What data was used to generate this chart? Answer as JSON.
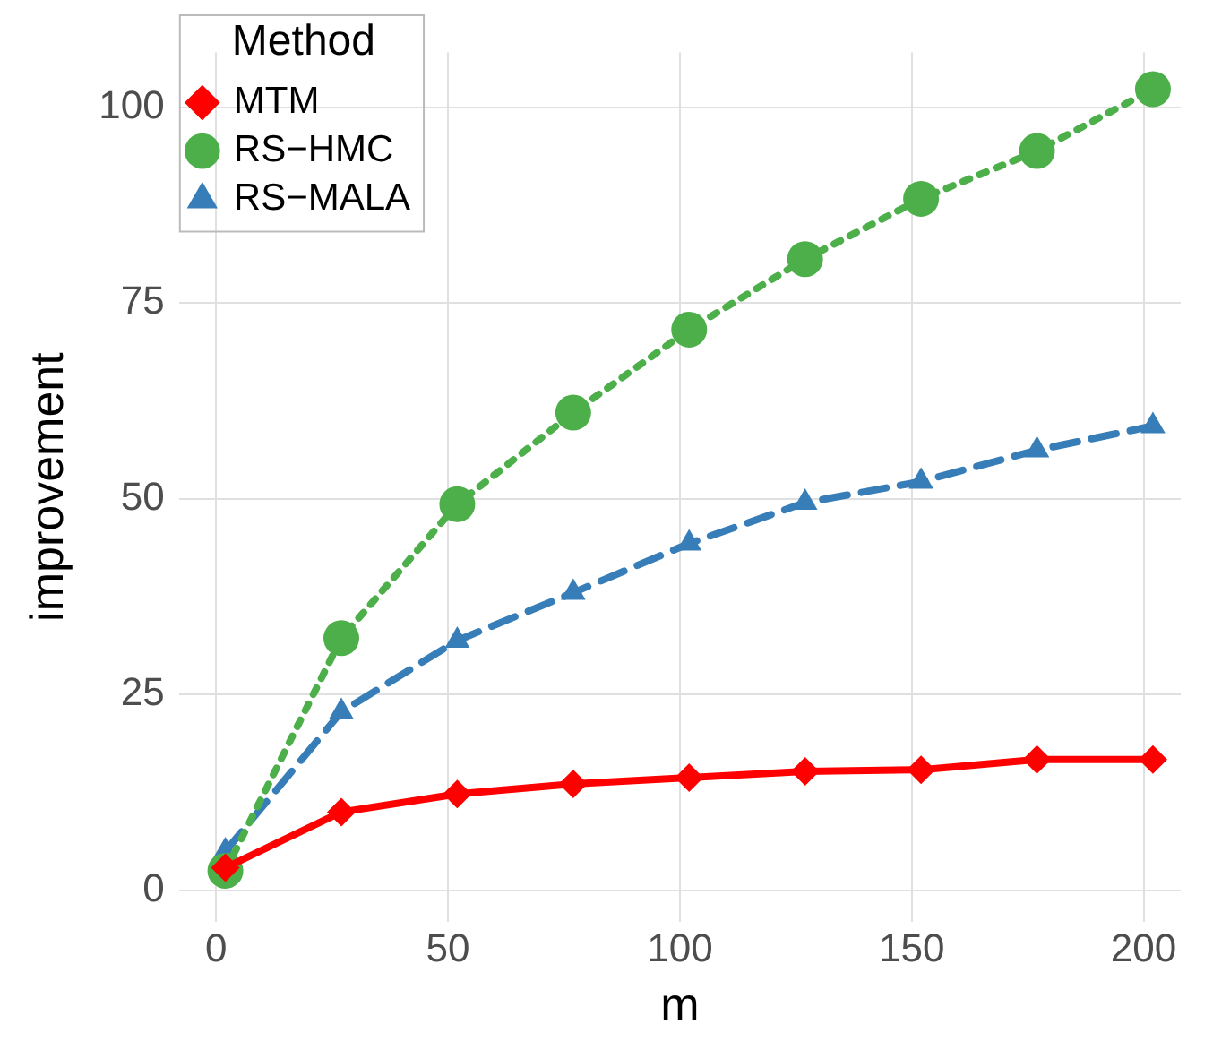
{
  "chart_data": {
    "type": "line",
    "xlabel": "m",
    "ylabel": "improvement",
    "legend_title": "Method",
    "legend": "top left",
    "grid": true,
    "xlim": [
      -8,
      208
    ],
    "xticks": [
      0,
      50,
      100,
      150,
      200
    ],
    "ylim": [
      -4,
      107
    ],
    "yticks": [
      0,
      25,
      50,
      75,
      100
    ],
    "x": [
      2,
      27,
      52,
      77,
      102,
      127,
      152,
      177,
      202
    ],
    "series": [
      {
        "name": "MTM",
        "color": "#ff0000",
        "marker": "diamond",
        "line_style": "solid",
        "values": [
          2.9,
          10,
          12.3,
          13.6,
          14.4,
          15.2,
          15.4,
          16.7,
          16.7
        ]
      },
      {
        "name": "RS−HMC",
        "color": "#4daf4a",
        "marker": "circle",
        "line_style": "dotted",
        "values": [
          2.5,
          32.2,
          49.3,
          61,
          71.6,
          80.6,
          88.3,
          94.4,
          102.3
        ]
      },
      {
        "name": "RS−MALA",
        "color": "#377eb8",
        "marker": "triangle",
        "line_style": "dashed",
        "values": [
          5,
          22.8,
          31.9,
          38,
          44.3,
          49.5,
          52.2,
          56.2,
          59.3
        ]
      }
    ]
  }
}
